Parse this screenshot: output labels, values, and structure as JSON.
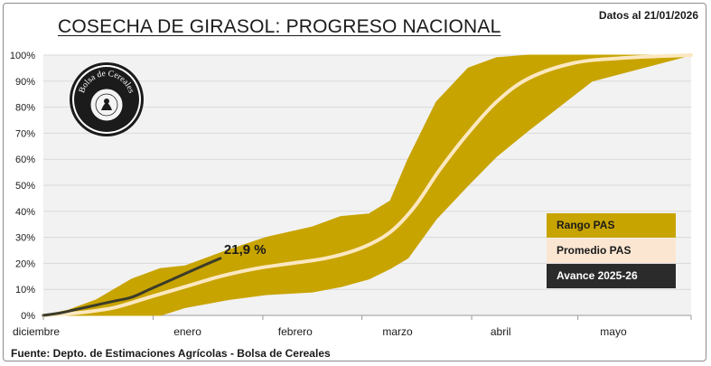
{
  "header": {
    "title": "COSECHA DE GIRASOL: PROGRESO NACIONAL",
    "date": "Datos al 21/01/2026"
  },
  "footer": {
    "source": "Fuente: Depto. de Estimaciones Agrícolas - Bolsa de Cereales"
  },
  "logo": {
    "text": "Bolsa de Cereales",
    "icon": "bolsa-de-cereales-seal"
  },
  "colors": {
    "band": "#c8a400",
    "average_line": "#fbe8c0",
    "current_line": "#3b3b2a",
    "plot_background": "#f2f2f2",
    "grid": "#d9d9d9",
    "legend_average_bg": "#fbe6d2",
    "legend_current_bg": "#2b2b2b"
  },
  "chart_data": {
    "type": "area",
    "title": "COSECHA DE GIRASOL: PROGRESO NACIONAL",
    "xlabel": "",
    "ylabel": "",
    "x_unit": "days since 1 December",
    "xlim": [
      0,
      183
    ],
    "ylim": [
      0,
      100
    ],
    "y_ticks": [
      0,
      10,
      20,
      30,
      40,
      50,
      60,
      70,
      80,
      90,
      100
    ],
    "y_tick_labels": [
      "0%",
      "10%",
      "20%",
      "30%",
      "40%",
      "50%",
      "60%",
      "70%",
      "80%",
      "90%",
      "100%"
    ],
    "x_ticks": [
      {
        "label": "diciembre",
        "x": 0
      },
      {
        "label": "enero",
        "x": 31
      },
      {
        "label": "febrero",
        "x": 62
      },
      {
        "label": "marzo",
        "x": 90
      },
      {
        "label": "abril",
        "x": 121
      },
      {
        "label": "mayo",
        "x": 151
      }
    ],
    "legend": [
      "Rango PAS",
      "Promedio PAS",
      "Avance 2025-26"
    ],
    "legend_position": "right",
    "series": [
      {
        "name": "Rango PAS",
        "kind": "band",
        "x": [
          0,
          7,
          15,
          25,
          33,
          40,
          52,
          63,
          76,
          84,
          92,
          98,
          103,
          111,
          120,
          128,
          137,
          155,
          183
        ],
        "upper": [
          0,
          2,
          6,
          14,
          18,
          19,
          25,
          30,
          34,
          38,
          39,
          44,
          60,
          82,
          95,
          99,
          100,
          100,
          100
        ],
        "lower": [
          0,
          0,
          0,
          0,
          0,
          3,
          6,
          8,
          9,
          11,
          14,
          18,
          22,
          37,
          50,
          61,
          71,
          90,
          100
        ]
      },
      {
        "name": "Promedio PAS",
        "kind": "line",
        "x": [
          0,
          10,
          20,
          30,
          40,
          50,
          60,
          70,
          80,
          90,
          98,
          105,
          112,
          120,
          128,
          137,
          150,
          165,
          183
        ],
        "values": [
          0,
          1,
          3,
          7,
          11,
          15,
          18,
          20,
          22,
          26,
          32,
          42,
          56,
          70,
          82,
          91,
          97,
          99,
          100
        ]
      },
      {
        "name": "Avance 2025-26",
        "kind": "line",
        "x": [
          0,
          5,
          10,
          15,
          20,
          25,
          30,
          35,
          40,
          45,
          50
        ],
        "values": [
          0,
          1,
          2.5,
          4,
          5.5,
          7,
          10,
          13,
          16,
          19,
          21.9
        ]
      }
    ],
    "annotations": [
      {
        "text": "21,9 %",
        "x": 50,
        "y": 21.9
      }
    ]
  }
}
